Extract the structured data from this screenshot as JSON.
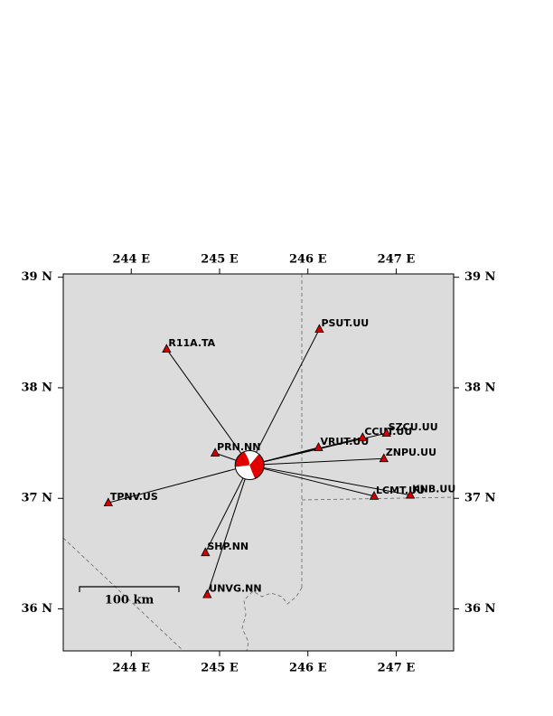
{
  "map": {
    "xlim": [
      243.23,
      247.65
    ],
    "ylim": [
      35.62,
      39.03
    ],
    "xticks": [
      {
        "value": 244,
        "label": "244 E"
      },
      {
        "value": 245,
        "label": "245 E"
      },
      {
        "value": 246,
        "label": "246 E"
      },
      {
        "value": 247,
        "label": "247 E"
      }
    ],
    "yticks": [
      {
        "value": 36,
        "label": "36 N"
      },
      {
        "value": 37,
        "label": "37 N"
      },
      {
        "value": 38,
        "label": "38 N"
      },
      {
        "value": 39,
        "label": "39 N"
      }
    ],
    "event": {
      "lon": 245.34,
      "lat": 37.3
    },
    "stations": [
      {
        "name": "PSUT.UU",
        "lon": 246.13,
        "lat": 38.53
      },
      {
        "name": "R11A.TA",
        "lon": 244.4,
        "lat": 38.35
      },
      {
        "name": "PRN.NN",
        "lon": 244.95,
        "lat": 37.41
      },
      {
        "name": "VRUT.UU",
        "lon": 246.12,
        "lat": 37.46
      },
      {
        "name": "CCUT.UU",
        "lon": 246.62,
        "lat": 37.55
      },
      {
        "name": "SZCU.UU",
        "lon": 246.89,
        "lat": 37.59
      },
      {
        "name": "ZNPU.UU",
        "lon": 246.86,
        "lat": 37.36
      },
      {
        "name": "LCMT.UU",
        "lon": 246.75,
        "lat": 37.02
      },
      {
        "name": "KNB.UU",
        "lon": 247.16,
        "lat": 37.03
      },
      {
        "name": "TPNV.US",
        "lon": 243.74,
        "lat": 36.96
      },
      {
        "name": "SHP.NN",
        "lon": 244.84,
        "lat": 36.51
      },
      {
        "name": "UNVG.NN",
        "lon": 244.86,
        "lat": 36.13
      }
    ],
    "scale_label": "100 km"
  }
}
